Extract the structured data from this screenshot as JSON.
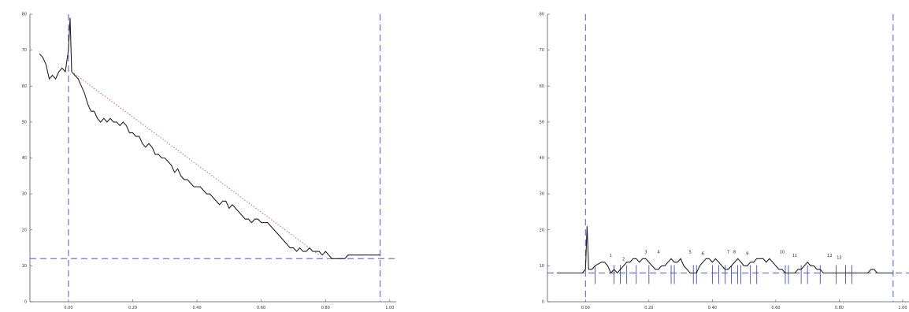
{
  "chart_data": [
    {
      "type": "line",
      "title": "",
      "xlabel": "",
      "ylabel": "",
      "xlim": [
        -0.12,
        1.02
      ],
      "ylim": [
        0,
        80
      ],
      "x_ticks": [
        0.0,
        0.2,
        0.4,
        0.6,
        0.8,
        1.0
      ],
      "x_tick_labels": [
        "0.00",
        "0.20",
        "0.40",
        "0.60",
        "0.80",
        "1.00"
      ],
      "y_ticks": [
        0,
        10,
        20,
        30,
        40,
        50,
        60,
        70,
        80
      ],
      "y_tick_labels": [
        "0",
        "10",
        "20",
        "30",
        "40",
        "50",
        "60",
        "70",
        "80"
      ],
      "grid": false,
      "series": [
        {
          "kind": "signal",
          "color": "#222222",
          "x": [
            -0.09,
            -0.08,
            -0.07,
            -0.06,
            -0.05,
            -0.04,
            -0.03,
            -0.02,
            -0.01,
            0.0,
            0.005,
            0.01,
            0.02,
            0.03,
            0.04,
            0.05,
            0.06,
            0.07,
            0.08,
            0.09,
            0.1,
            0.11,
            0.12,
            0.13,
            0.14,
            0.15,
            0.16,
            0.17,
            0.18,
            0.19,
            0.2,
            0.21,
            0.22,
            0.23,
            0.24,
            0.25,
            0.26,
            0.27,
            0.28,
            0.29,
            0.3,
            0.31,
            0.32,
            0.33,
            0.34,
            0.35,
            0.36,
            0.37,
            0.38,
            0.39,
            0.4,
            0.41,
            0.42,
            0.43,
            0.44,
            0.45,
            0.46,
            0.47,
            0.48,
            0.49,
            0.5,
            0.51,
            0.52,
            0.53,
            0.54,
            0.55,
            0.56,
            0.57,
            0.58,
            0.59,
            0.6,
            0.61,
            0.62,
            0.63,
            0.64,
            0.65,
            0.66,
            0.67,
            0.68,
            0.69,
            0.7,
            0.71,
            0.72,
            0.73,
            0.74,
            0.75,
            0.76,
            0.77,
            0.78,
            0.79,
            0.8,
            0.81,
            0.82,
            0.83,
            0.84,
            0.85,
            0.86,
            0.87,
            0.88,
            0.89,
            0.9,
            0.91,
            0.92,
            0.93,
            0.94,
            0.95,
            0.96,
            0.97
          ],
          "y": [
            69,
            68,
            66,
            62,
            63,
            62,
            64,
            65,
            64,
            70,
            79,
            64,
            63,
            62,
            60,
            58,
            55,
            53,
            53,
            51,
            50,
            51,
            50,
            51,
            50,
            50,
            49,
            50,
            49,
            47,
            47,
            46,
            46,
            44,
            43,
            44,
            43,
            41,
            41,
            40,
            40,
            39,
            38,
            36,
            37,
            35,
            34,
            34,
            33,
            32,
            32,
            32,
            31,
            30,
            30,
            29,
            28,
            27,
            28,
            28,
            26,
            27,
            26,
            25,
            24,
            23,
            23,
            22,
            23,
            23,
            22,
            22,
            22,
            21,
            20,
            19,
            18,
            17,
            16,
            15,
            15,
            14,
            15,
            14,
            14,
            15,
            14,
            14,
            14,
            13,
            14,
            13,
            12,
            12,
            12,
            12,
            12,
            13,
            13,
            13,
            13,
            13,
            13,
            13,
            13,
            13,
            13,
            13
          ]
        },
        {
          "kind": "fit",
          "style": "dotted",
          "color": "#cc6666",
          "x": [
            0.01,
            0.78
          ],
          "y": [
            64,
            13
          ]
        }
      ],
      "vlines": [
        0.0,
        0.97
      ],
      "hline": 12
    },
    {
      "type": "line",
      "title": "",
      "xlabel": "",
      "ylabel": "",
      "xlim": [
        -0.12,
        1.02
      ],
      "ylim": [
        0,
        80
      ],
      "x_ticks": [
        0.0,
        0.2,
        0.4,
        0.6,
        0.8,
        1.0
      ],
      "x_tick_labels": [
        "0.00",
        "0.20",
        "0.40",
        "0.60",
        "0.80",
        "1.00"
      ],
      "y_ticks": [
        0,
        10,
        20,
        30,
        40,
        50,
        60,
        70,
        80
      ],
      "y_tick_labels": [
        "0",
        "10",
        "20",
        "30",
        "40",
        "50",
        "60",
        "70",
        "80"
      ],
      "grid": false,
      "series": [
        {
          "kind": "signal",
          "color": "#222222",
          "x": [
            -0.09,
            -0.06,
            -0.03,
            -0.01,
            0.0,
            0.005,
            0.01,
            0.02,
            0.03,
            0.05,
            0.06,
            0.07,
            0.08,
            0.09,
            0.1,
            0.11,
            0.12,
            0.13,
            0.14,
            0.15,
            0.16,
            0.17,
            0.18,
            0.19,
            0.2,
            0.21,
            0.22,
            0.23,
            0.24,
            0.25,
            0.26,
            0.27,
            0.28,
            0.29,
            0.3,
            0.31,
            0.32,
            0.33,
            0.34,
            0.35,
            0.36,
            0.37,
            0.38,
            0.39,
            0.4,
            0.41,
            0.42,
            0.43,
            0.44,
            0.45,
            0.46,
            0.47,
            0.48,
            0.49,
            0.5,
            0.51,
            0.52,
            0.53,
            0.54,
            0.55,
            0.56,
            0.57,
            0.58,
            0.59,
            0.6,
            0.61,
            0.62,
            0.63,
            0.64,
            0.65,
            0.66,
            0.67,
            0.68,
            0.69,
            0.7,
            0.71,
            0.72,
            0.73,
            0.74,
            0.75,
            0.76,
            0.77,
            0.78,
            0.79,
            0.8,
            0.81,
            0.82,
            0.83,
            0.84,
            0.85,
            0.86,
            0.87,
            0.88,
            0.89,
            0.9,
            0.91,
            0.92,
            0.93,
            0.94,
            0.95,
            0.96,
            0.97
          ],
          "y": [
            8,
            8,
            8,
            8,
            9,
            21,
            9,
            9,
            10,
            11,
            11,
            10,
            8,
            9,
            8,
            9,
            10,
            11,
            11,
            12,
            12,
            11,
            12,
            12,
            11,
            10,
            9,
            9,
            10,
            10,
            11,
            12,
            11,
            11,
            12,
            10,
            9,
            8,
            8,
            8,
            10,
            11,
            12,
            12,
            11,
            12,
            11,
            10,
            9,
            9,
            10,
            11,
            12,
            11,
            10,
            10,
            11,
            11,
            12,
            12,
            12,
            11,
            12,
            11,
            10,
            9,
            9,
            8,
            8,
            8,
            8,
            9,
            9,
            10,
            11,
            10,
            10,
            9,
            9,
            8,
            8,
            8,
            8,
            8,
            8,
            8,
            8,
            8,
            8,
            8,
            8,
            8,
            8,
            8,
            9,
            9,
            8,
            8,
            8,
            8,
            8,
            8
          ]
        }
      ],
      "vlines": [
        0.0,
        0.97
      ],
      "hline": 8,
      "peaks": [
        {
          "label": "1",
          "x": 0.08,
          "y": 12.5
        },
        {
          "label": "2",
          "x": 0.12,
          "y": 11.5
        },
        {
          "label": "3",
          "x": 0.19,
          "y": 13.5
        },
        {
          "label": "4",
          "x": 0.23,
          "y": 13.5
        },
        {
          "label": "5",
          "x": 0.33,
          "y": 13.5
        },
        {
          "label": "6",
          "x": 0.37,
          "y": 13
        },
        {
          "label": "7",
          "x": 0.45,
          "y": 13.5
        },
        {
          "label": "8",
          "x": 0.47,
          "y": 13.5
        },
        {
          "label": "9",
          "x": 0.51,
          "y": 13
        },
        {
          "label": "10",
          "x": 0.62,
          "y": 13.5
        },
        {
          "label": "11",
          "x": 0.66,
          "y": 12.5
        },
        {
          "label": "12",
          "x": 0.77,
          "y": 12.5
        },
        {
          "label": "13",
          "x": 0.8,
          "y": 12
        }
      ],
      "segment_marks": [
        0.03,
        0.09,
        0.11,
        0.13,
        0.16,
        0.2,
        0.27,
        0.28,
        0.34,
        0.35,
        0.4,
        0.42,
        0.44,
        0.46,
        0.48,
        0.49,
        0.52,
        0.54,
        0.63,
        0.64,
        0.68,
        0.7,
        0.74,
        0.79,
        0.82,
        0.84
      ]
    }
  ],
  "colors": {
    "signal": "#222222",
    "guide": "#4a5fc9",
    "fit": "#cc6666",
    "axis": "#555555",
    "marker": "#2c3eb0"
  }
}
